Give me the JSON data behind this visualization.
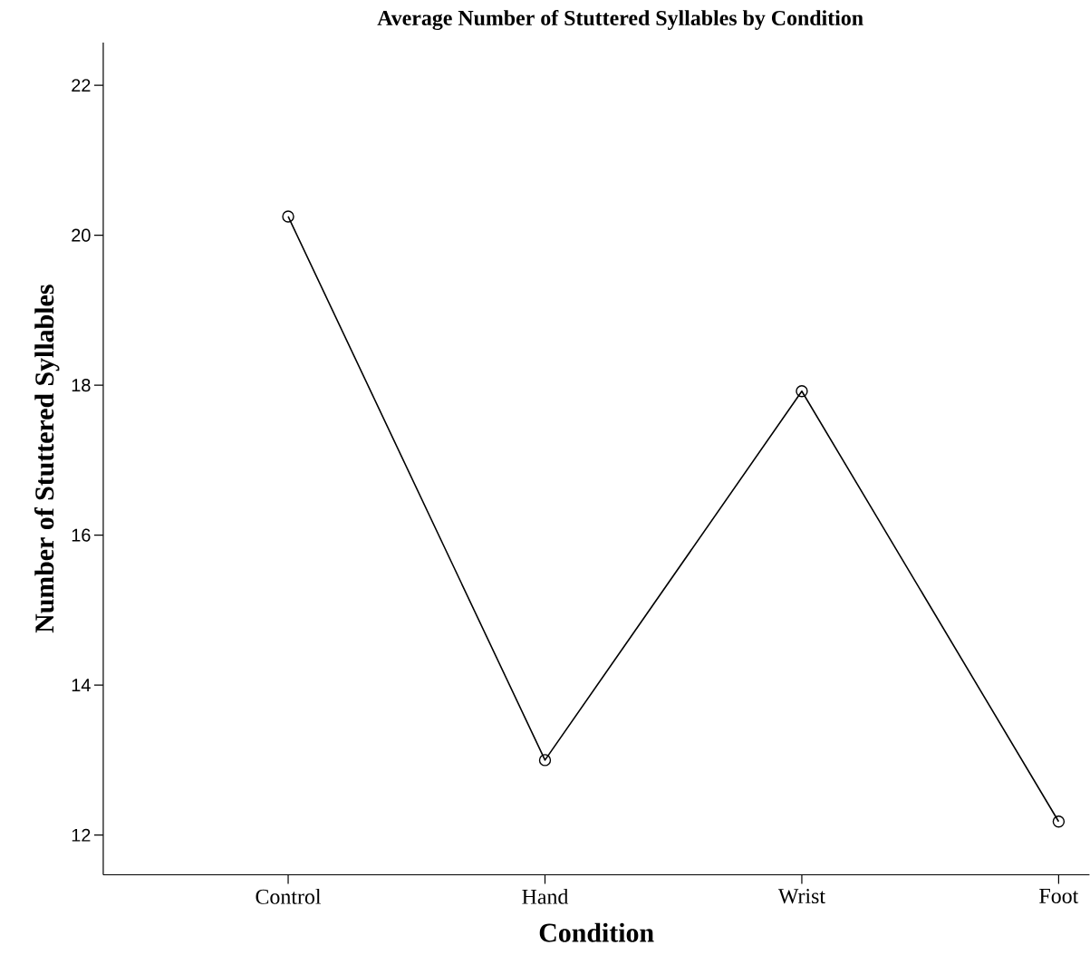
{
  "chart_data": {
    "type": "line",
    "title": "Average Number of Stuttered Syllables by Condition",
    "xlabel": "Condition",
    "ylabel": "Number of Stuttered Syllables",
    "categories": [
      "Control",
      "Hand",
      "Wrist",
      "Foot"
    ],
    "values": [
      20.25,
      13.0,
      17.92,
      12.18
    ],
    "color": "#000000",
    "marker": "circle",
    "line_style": "solid",
    "ylim": [
      11.47,
      22.57
    ],
    "yticks": [
      12,
      14,
      16,
      18,
      20,
      22
    ]
  }
}
